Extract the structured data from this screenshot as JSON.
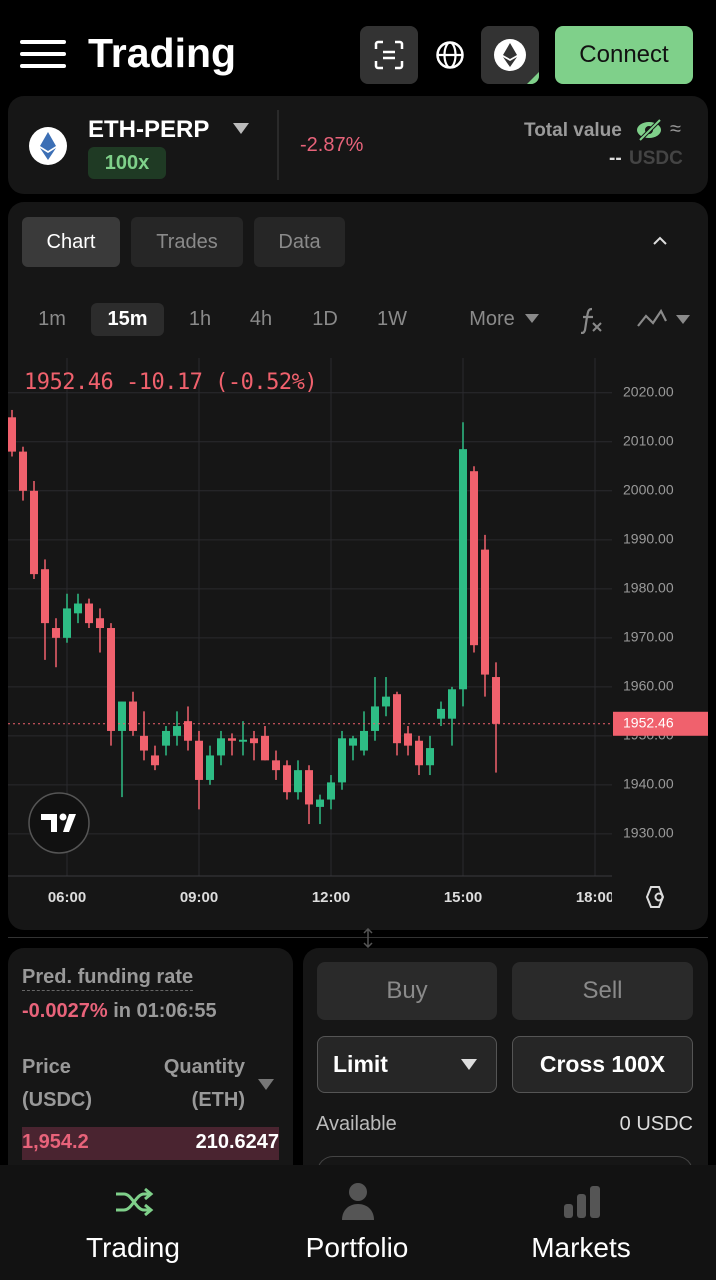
{
  "header": {
    "title": "Trading",
    "connect": "Connect"
  },
  "market": {
    "symbol": "ETH-PERP",
    "leverage": "100x",
    "change": "-2.87%",
    "total_value_label": "Total value",
    "total_value_approx": "≈",
    "total_value": "--",
    "total_value_unit": "USDC"
  },
  "tabs": [
    "Chart",
    "Trades",
    "Data"
  ],
  "timeframes": [
    "1m",
    "15m",
    "1h",
    "4h",
    "1D",
    "1W"
  ],
  "more": "More",
  "chart_data": {
    "type": "candlestick",
    "legend_text": "1952.46 -10.17 (-0.52%)",
    "x": [
      "04:45",
      "05:00",
      "05:15",
      "05:30",
      "05:45",
      "06:00",
      "06:15",
      "06:30",
      "06:45",
      "07:00",
      "07:15",
      "07:30",
      "07:45",
      "08:00",
      "08:15",
      "08:30",
      "08:45",
      "09:00",
      "09:15",
      "09:30",
      "09:45",
      "10:00",
      "10:15",
      "10:30",
      "10:45",
      "11:00",
      "11:15",
      "11:30",
      "11:45",
      "12:00",
      "12:15",
      "12:30",
      "12:45",
      "13:00",
      "13:15",
      "13:30",
      "13:45",
      "14:00",
      "14:15",
      "14:30",
      "14:45",
      "15:00",
      "15:15",
      "15:30",
      "15:45"
    ],
    "open": [
      2015,
      2008,
      2000,
      1984,
      1972,
      1970,
      1975,
      1977,
      1974,
      1972,
      1951,
      1957,
      1950,
      1946,
      1948,
      1950,
      1953,
      1949,
      1941,
      1946,
      1949.5,
      1948.8,
      1949.5,
      1950,
      1945,
      1944,
      1938.5,
      1943,
      1935.5,
      1937,
      1940.5,
      1948,
      1947,
      1951,
      1956,
      1958.5,
      1950.5,
      1949,
      1944,
      1953.5,
      1953.5,
      1959.5,
      2004,
      1988,
      1962
    ],
    "high": [
      2016.5,
      2009,
      2002,
      1986,
      1974,
      1979,
      1979,
      1978,
      1976,
      1973,
      1957,
      1959,
      1955,
      1948,
      1952,
      1955,
      1956,
      1951,
      1948,
      1951,
      1950.5,
      1953,
      1951,
      1952,
      1947,
      1945,
      1945,
      1944,
      1938,
      1942,
      1951,
      1950,
      1955,
      1962,
      1962,
      1959,
      1952,
      1950,
      1950,
      1957,
      1960,
      2014,
      2005,
      1991,
      1965
    ],
    "low": [
      2007,
      1998,
      1982,
      1965.5,
      1964,
      1969,
      1973,
      1972,
      1967,
      1948,
      1937.5,
      1950,
      1945,
      1943,
      1946,
      1948,
      1947,
      1935,
      1940,
      1944,
      1946,
      1946,
      1945,
      1945,
      1941,
      1937,
      1937,
      1932,
      1932,
      1935,
      1939,
      1945,
      1946,
      1949,
      1954,
      1946,
      1946,
      1942,
      1942,
      1952,
      1948,
      1956,
      1967,
      1958,
      1942.5
    ],
    "close": [
      2008,
      2000,
      1983,
      1973,
      1970,
      1976,
      1977,
      1973,
      1972,
      1951,
      1957,
      1951,
      1947,
      1944,
      1951,
      1952,
      1949,
      1941,
      1946,
      1949.5,
      1949,
      1949.2,
      1948.5,
      1945,
      1943,
      1938.5,
      1943,
      1936,
      1937,
      1940.5,
      1949.5,
      1949.5,
      1951,
      1956,
      1958,
      1948.5,
      1948,
      1944,
      1947.5,
      1955.5,
      1959.5,
      2008.5,
      1968.5,
      1962.5,
      1952.46
    ],
    "up_color": "#2ebd85",
    "down_color": "#f0616d",
    "xticks": [
      "06:00",
      "09:00",
      "12:00",
      "15:00",
      "18:00"
    ],
    "ylim": [
      1921.4,
      2027.1
    ],
    "yticks": [
      {
        "value": 1930,
        "label": "1930.00"
      },
      {
        "value": 1940,
        "label": "1940.00"
      },
      {
        "value": 1950,
        "label": "1950.00"
      },
      {
        "value": 1960,
        "label": "1960.00"
      },
      {
        "value": 1970,
        "label": "1970.00"
      },
      {
        "value": 1980,
        "label": "1980.00"
      },
      {
        "value": 1990,
        "label": "1990.00"
      },
      {
        "value": 2000,
        "label": "2000.00"
      },
      {
        "value": 2010,
        "label": "2010.00"
      },
      {
        "value": 2020,
        "label": "2020.00"
      }
    ],
    "last_price": {
      "value": 1952.46,
      "label": "1952.46"
    },
    "grid": true
  },
  "funding": {
    "label": "Pred. funding rate",
    "rate": "-0.0027%",
    "countdown": "in 01:06:55"
  },
  "orderbook": {
    "price_header": [
      "Price",
      "(USDC)"
    ],
    "quantity_header": [
      "Quantity",
      "(ETH)"
    ],
    "rows": [
      [
        "1,954.2",
        "210.6247"
      ]
    ]
  },
  "order_form": {
    "buy": "Buy",
    "sell": "Sell",
    "order_type": "Limit",
    "margin": "Cross 100X",
    "available_label": "Available",
    "available_value": "0",
    "available_unit": "USDC"
  },
  "nav": [
    "Trading",
    "Portfolio",
    "Markets"
  ]
}
